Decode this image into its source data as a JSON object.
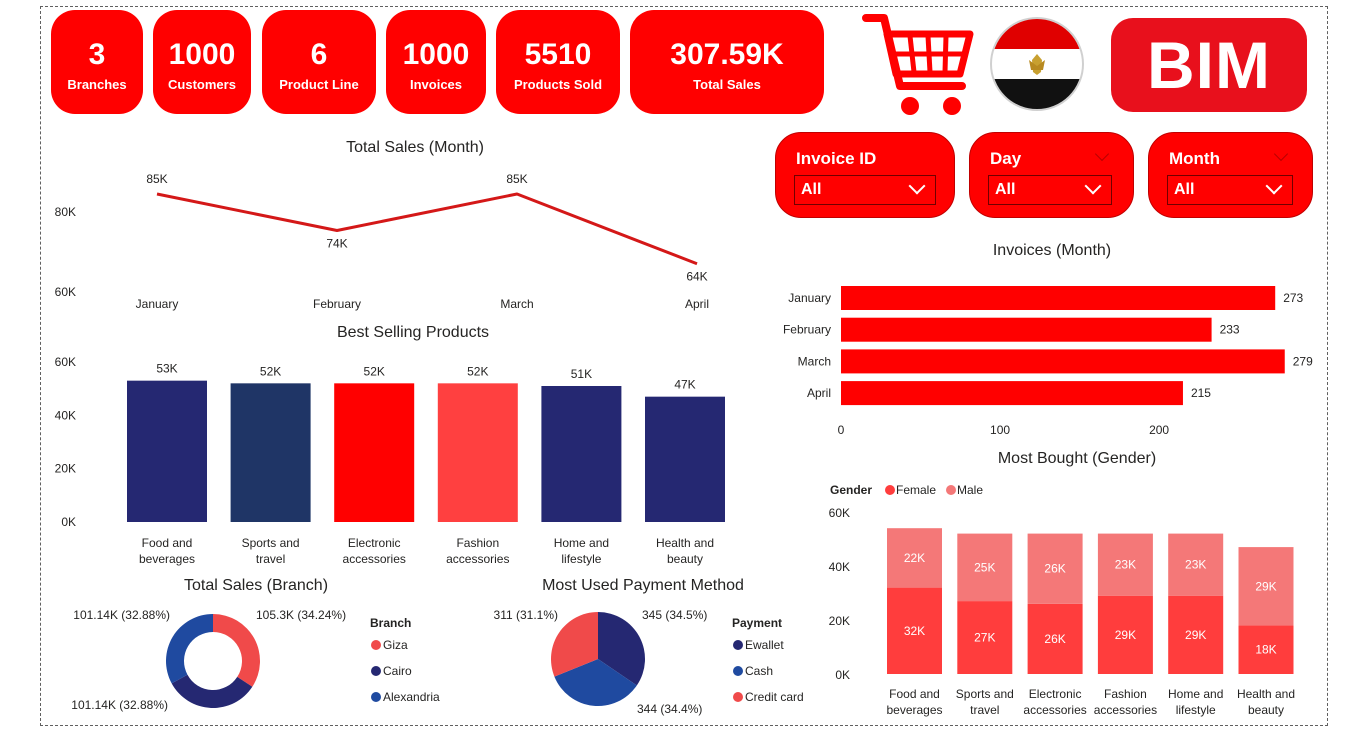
{
  "kpis": [
    {
      "value": "3",
      "label": "Branches"
    },
    {
      "value": "1000",
      "label": "Customers"
    },
    {
      "value": "6",
      "label": "Product Line"
    },
    {
      "value": "1000",
      "label": "Invoices"
    },
    {
      "value": "5510",
      "label": "Products Sold"
    },
    {
      "value": "307.59K",
      "label": "Total Sales"
    }
  ],
  "logo": {
    "text": "BIM"
  },
  "icons": {
    "cart": "shopping-cart-icon",
    "flag": "egypt-flag-icon"
  },
  "colors": {
    "brand_red": "#ff0000",
    "navy": "#252872",
    "dark_blue": "#1f3566",
    "coral": "#ff4040",
    "pink": "#f47171",
    "female": "#ff3d3d",
    "male": "#f47878"
  },
  "slicers": [
    {
      "title": "Invoice ID",
      "value": "All"
    },
    {
      "title": "Day",
      "value": "All"
    },
    {
      "title": "Month",
      "value": "All"
    }
  ],
  "chart_data": [
    {
      "id": "sales_month",
      "type": "line",
      "title": "Total Sales (Month)",
      "categories": [
        "January",
        "February",
        "March",
        "April"
      ],
      "values": [
        85,
        74,
        85,
        64
      ],
      "labels": [
        "85K",
        "74K",
        "85K",
        "64K"
      ],
      "y_ticks": [
        "80K",
        "60K"
      ],
      "ylim": [
        60,
        85
      ],
      "color": "#d41818"
    },
    {
      "id": "best_selling",
      "type": "bar",
      "title": "Best Selling Products",
      "categories": [
        "Food and beverages",
        "Sports and travel",
        "Electronic accessories",
        "Fashion accessories",
        "Home and lifestyle",
        "Health and beauty"
      ],
      "values": [
        53,
        52,
        52,
        52,
        51,
        47
      ],
      "labels": [
        "53K",
        "52K",
        "52K",
        "52K",
        "51K",
        "47K"
      ],
      "bar_colors": [
        "#252872",
        "#1f3566",
        "#ff0000",
        "#ff4040",
        "#252872",
        "#252872"
      ],
      "y_ticks": [
        "60K",
        "40K",
        "20K",
        "0K"
      ],
      "ylim": [
        0,
        60
      ]
    },
    {
      "id": "sales_branch",
      "type": "pie",
      "title": "Total Sales (Branch)",
      "legend_title": "Branch",
      "series": [
        {
          "name": "Giza",
          "value": 105.3,
          "label": "105.3K (34.24%)",
          "color": "#f04a4a"
        },
        {
          "name": "Cairo",
          "value": 101.14,
          "label": "101.14K (32.88%)",
          "color": "#252872"
        },
        {
          "name": "Alexandria",
          "value": 101.14,
          "label": "101.14K (32.88%)",
          "color": "#1f4aa0"
        }
      ]
    },
    {
      "id": "payment",
      "type": "pie",
      "title": "Most Used Payment Method",
      "legend_title": "Payment",
      "series": [
        {
          "name": "Ewallet",
          "value": 345,
          "label": "345 (34.5%)",
          "color": "#252872"
        },
        {
          "name": "Cash",
          "value": 344,
          "label": "344 (34.4%)",
          "color": "#1f4aa0"
        },
        {
          "name": "Credit card",
          "value": 311,
          "label": "311 (31.1%)",
          "color": "#f04a4a"
        }
      ]
    },
    {
      "id": "invoices_month",
      "type": "bar",
      "orientation": "horizontal",
      "title": "Invoices (Month)",
      "categories": [
        "January",
        "February",
        "March",
        "April"
      ],
      "values": [
        273,
        233,
        279,
        215
      ],
      "x_ticks": [
        "0",
        "100",
        "200"
      ],
      "xlim": [
        0,
        279
      ],
      "color": "#ff0000"
    },
    {
      "id": "gender",
      "type": "bar",
      "stacked": true,
      "title": "Most Bought (Gender)",
      "legend_title": "Gender",
      "categories": [
        "Food and beverages",
        "Sports and travel",
        "Electronic accessories",
        "Fashion accessories",
        "Home and lifestyle",
        "Health and beauty"
      ],
      "series": [
        {
          "name": "Female",
          "values": [
            32,
            27,
            26,
            29,
            29,
            18
          ],
          "labels": [
            "32K",
            "27K",
            "26K",
            "29K",
            "29K",
            "18K"
          ],
          "color": "#ff3d3d"
        },
        {
          "name": "Male",
          "values": [
            22,
            25,
            26,
            23,
            23,
            29
          ],
          "labels": [
            "22K",
            "25K",
            "26K",
            "23K",
            "23K",
            "29K"
          ],
          "color": "#f47878"
        }
      ],
      "y_ticks": [
        "60K",
        "40K",
        "20K",
        "0K"
      ],
      "ylim": [
        0,
        60
      ]
    }
  ]
}
